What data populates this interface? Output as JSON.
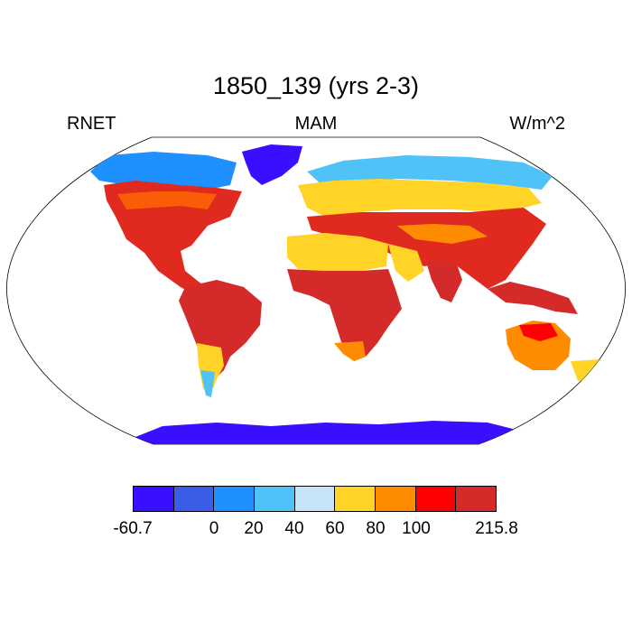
{
  "header": {
    "title": "1850_139 (yrs 2-3)",
    "left_label": "RNET",
    "center_label": "MAM",
    "right_label": "W/m^2"
  },
  "colorbar": {
    "colors": [
      "#3a0fff",
      "#3a5ce6",
      "#1e90ff",
      "#4fc3f7",
      "#c6e4f7",
      "#ffd426",
      "#ff8c00",
      "#ff0000",
      "#d42a2a"
    ],
    "labels": [
      "-60.7",
      "0",
      "20",
      "40",
      "60",
      "80",
      "100",
      "215.8"
    ]
  },
  "map": {
    "projection": "robinson",
    "ocean_color": "#ffffff",
    "regions": [
      {
        "name": "north-america",
        "level": 7
      },
      {
        "name": "canada-arctic",
        "level": 2
      },
      {
        "name": "greenland",
        "level": 0
      },
      {
        "name": "south-america",
        "level": 8
      },
      {
        "name": "patagonia",
        "level": 5
      },
      {
        "name": "europe",
        "level": 5
      },
      {
        "name": "siberia",
        "level": 2
      },
      {
        "name": "asia",
        "level": 7
      },
      {
        "name": "sahara",
        "level": 6
      },
      {
        "name": "africa",
        "level": 8
      },
      {
        "name": "arabia",
        "level": 5
      },
      {
        "name": "india",
        "level": 8
      },
      {
        "name": "australia",
        "level": 6
      },
      {
        "name": "indonesia",
        "level": 8
      },
      {
        "name": "antarctica",
        "level": 0
      }
    ]
  }
}
